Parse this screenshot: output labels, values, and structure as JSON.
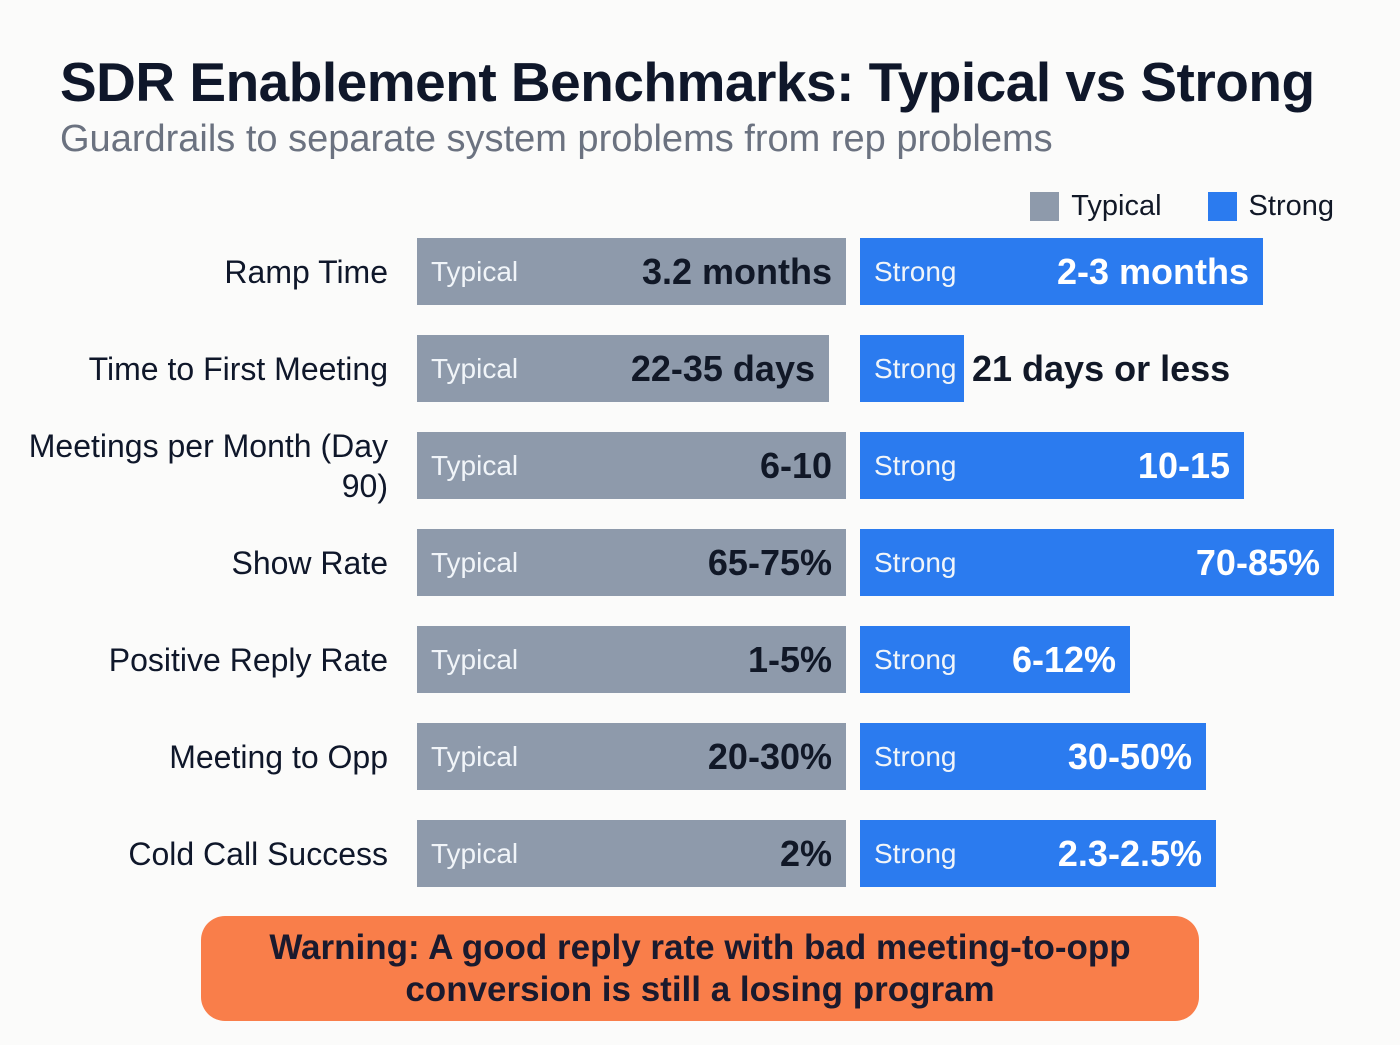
{
  "title": "SDR Enablement Benchmarks: Typical vs Strong",
  "subtitle": "Guardrails to separate system problems from rep problems",
  "colors": {
    "typical": "#8e9aab",
    "strong": "#2b7bef",
    "warning_bg": "#f97e4a"
  },
  "warning": "Warning: A good reply rate with bad meeting-to-opp conversion is still a losing program",
  "chart_data": {
    "type": "bar",
    "orientation": "horizontal",
    "legend": {
      "position": "top-right",
      "entries": [
        "Typical",
        "Strong"
      ]
    },
    "bar_tags": {
      "typical": "Typical",
      "strong": "Strong"
    },
    "categories": [
      "Ramp Time",
      "Time to First Meeting",
      "Meetings per Month (Day 90)",
      "Show Rate",
      "Positive Reply Rate",
      "Meeting to Opp",
      "Cold Call Success"
    ],
    "series": [
      {
        "name": "Typical",
        "labels": [
          "3.2 months",
          "22-35 days",
          "6-10",
          "65-75%",
          "1-5%",
          "20-30%",
          "2%"
        ],
        "fill_fraction": [
          1,
          0.96,
          1,
          1,
          1,
          1,
          1
        ]
      },
      {
        "name": "Strong",
        "labels": [
          "2-3 months",
          "21 days or less",
          "10-15",
          "70-85%",
          "6-12%",
          "30-50%",
          "2.3-2.5%"
        ],
        "fill_fraction": [
          0.85,
          0.22,
          0.81,
          1,
          0.57,
          0.73,
          0.75
        ]
      }
    ]
  }
}
